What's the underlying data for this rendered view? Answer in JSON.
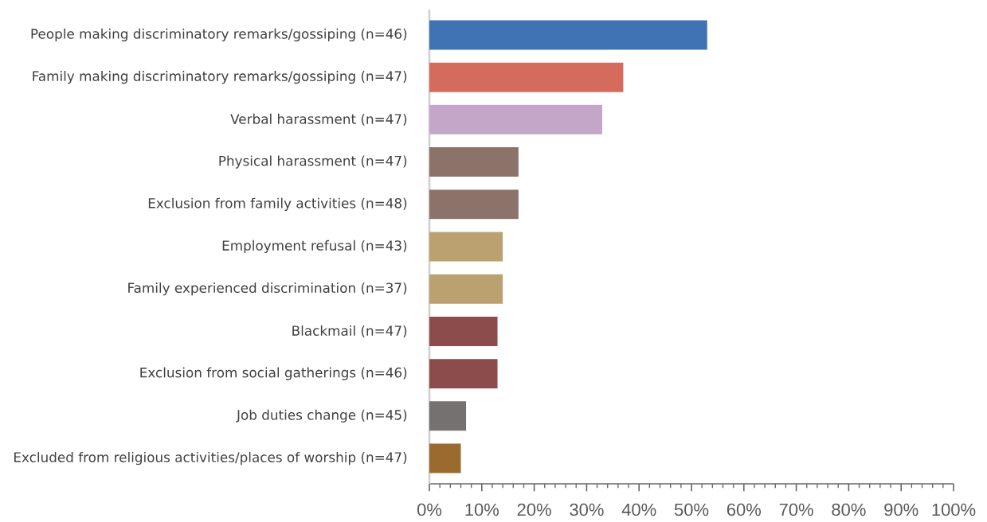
{
  "chart_data": {
    "type": "bar",
    "orientation": "horizontal",
    "categories": [
      "People making discriminatory remarks/gossiping (n=46)",
      "Family making discriminatory remarks/gossiping (n=47)",
      "Verbal harassment (n=47)",
      "Physical harassment (n=47)",
      "Exclusion from family activities (n=48)",
      "Employment refusal (n=43)",
      "Family experienced discrimination (n=37)",
      "Blackmail (n=47)",
      "Exclusion from social gatherings (n=46)",
      "Job duties change (n=45)",
      "Excluded from religious activities/places of worship (n=47)"
    ],
    "values": [
      53,
      37,
      33,
      17,
      17,
      14,
      14,
      13,
      13,
      7,
      6
    ],
    "colors": [
      "#3f73b4",
      "#d46b5d",
      "#c4a7c8",
      "#8b7369",
      "#8b7369",
      "#bba170",
      "#bba170",
      "#8b4c4b",
      "#8b4c4b",
      "#75716f",
      "#9a6a2e"
    ],
    "xlim": [
      0,
      100
    ],
    "xticks": [
      {
        "value": 0,
        "label": "0%"
      },
      {
        "value": 10,
        "label": "10%"
      },
      {
        "value": 20,
        "label": "20%"
      },
      {
        "value": 30,
        "label": "30%"
      },
      {
        "value": 40,
        "label": "40%"
      },
      {
        "value": 50,
        "label": "50%"
      },
      {
        "value": 60,
        "label": "60%"
      },
      {
        "value": 70,
        "label": "70%"
      },
      {
        "value": 80,
        "label": "80%"
      },
      {
        "value": 90,
        "label": "90%"
      },
      {
        "value": 100,
        "label": "100%"
      }
    ]
  }
}
